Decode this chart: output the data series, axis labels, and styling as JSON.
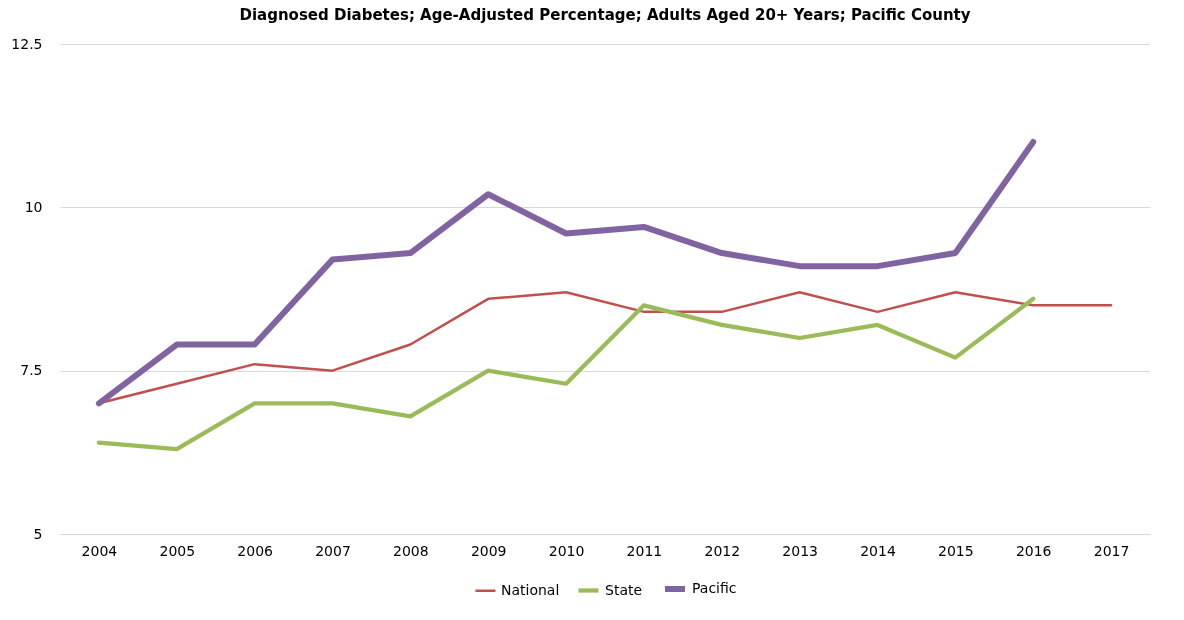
{
  "chart_data": {
    "type": "line",
    "title": "Diagnosed Diabetes; Age-Adjusted Percentage; Adults Aged 20+ Years; Pacific County",
    "categories": [
      "2004",
      "2005",
      "2006",
      "2007",
      "2008",
      "2009",
      "2010",
      "2011",
      "2012",
      "2013",
      "2014",
      "2015",
      "2016",
      "2017"
    ],
    "series": [
      {
        "name": "National",
        "color": "#c0504d",
        "values": [
          7.0,
          7.3,
          7.6,
          7.5,
          7.9,
          8.6,
          8.7,
          8.4,
          8.4,
          8.7,
          8.4,
          8.7,
          8.5,
          8.5
        ]
      },
      {
        "name": "State",
        "color": "#9bbb59",
        "values": [
          6.4,
          6.3,
          7.0,
          7.0,
          6.8,
          7.5,
          7.3,
          8.5,
          8.2,
          8.0,
          8.2,
          7.7,
          8.6,
          null
        ]
      },
      {
        "name": "Pacific",
        "color": "#8064a2",
        "values": [
          7.0,
          7.9,
          7.9,
          9.2,
          9.3,
          10.2,
          9.6,
          9.7,
          9.3,
          9.1,
          9.1,
          9.3,
          11.0,
          null
        ]
      }
    ],
    "ylim": [
      5,
      12.5
    ],
    "yticks": [
      5,
      7.5,
      10,
      12.5
    ],
    "grid": "y",
    "legend": "bottom"
  }
}
